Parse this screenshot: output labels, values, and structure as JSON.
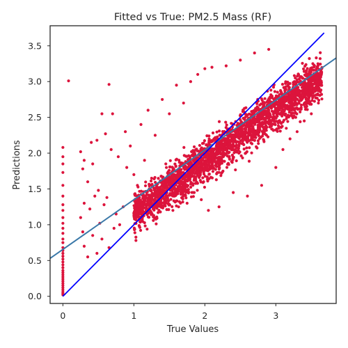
{
  "chart_data": {
    "type": "scatter",
    "title": "Fitted vs True: PM2.5 Mass (RF)",
    "xlabel": "True Values",
    "ylabel": "Predictions",
    "xlim": [
      -0.18,
      3.85
    ],
    "ylim": [
      -0.1,
      3.78
    ],
    "x_ticks": [
      0,
      1,
      2,
      3
    ],
    "y_ticks": [
      0.0,
      0.5,
      1.0,
      1.5,
      2.0,
      2.5,
      3.0,
      3.5
    ],
    "x_tick_labels": [
      "0",
      "1",
      "2",
      "3"
    ],
    "y_tick_labels": [
      "0.0",
      "0.5",
      "1.0",
      "1.5",
      "2.0",
      "2.5",
      "3.0",
      "3.5"
    ],
    "grid": false,
    "colors": {
      "points": "#dc143c",
      "identity_line": "#0000ff",
      "fit_line": "#3a78a8",
      "axes": "#262626"
    },
    "identity_line": {
      "x": [
        0.0,
        3.68
      ],
      "y": [
        0.0,
        3.68
      ]
    },
    "fit_line": {
      "x": [
        -0.18,
        3.85
      ],
      "y": [
        0.53,
        3.33
      ]
    },
    "series": [
      {
        "points": [
          [
            0.0,
            0.02
          ],
          [
            0.0,
            0.04
          ],
          [
            0.0,
            0.06
          ],
          [
            0.0,
            0.09
          ],
          [
            0.0,
            0.12
          ],
          [
            0.0,
            0.15
          ],
          [
            0.0,
            0.18
          ],
          [
            0.0,
            0.21
          ],
          [
            0.0,
            0.24
          ],
          [
            0.0,
            0.27
          ],
          [
            0.0,
            0.3
          ],
          [
            0.0,
            0.33
          ],
          [
            0.0,
            0.36
          ],
          [
            0.0,
            0.4
          ],
          [
            0.0,
            0.44
          ],
          [
            0.0,
            0.48
          ],
          [
            0.0,
            0.52
          ],
          [
            0.0,
            0.56
          ],
          [
            0.0,
            0.6
          ],
          [
            0.0,
            0.64
          ],
          [
            0.0,
            0.68
          ],
          [
            0.0,
            0.75
          ],
          [
            0.0,
            0.8
          ],
          [
            0.0,
            0.88
          ],
          [
            0.0,
            0.95
          ],
          [
            0.0,
            1.02
          ],
          [
            0.0,
            1.1
          ],
          [
            0.0,
            1.2
          ],
          [
            0.0,
            1.28
          ],
          [
            0.0,
            1.4
          ],
          [
            0.0,
            1.55
          ],
          [
            0.0,
            1.73
          ],
          [
            0.0,
            1.85
          ],
          [
            0.0,
            1.95
          ],
          [
            0.0,
            2.08
          ],
          [
            0.08,
            3.01
          ],
          [
            0.65,
            2.96
          ],
          [
            0.55,
            2.55
          ],
          [
            0.7,
            2.55
          ],
          [
            0.6,
            2.27
          ],
          [
            0.48,
            2.18
          ],
          [
            0.4,
            2.15
          ],
          [
            0.25,
            2.02
          ],
          [
            0.3,
            1.9
          ],
          [
            0.42,
            1.85
          ],
          [
            0.28,
            1.78
          ],
          [
            0.35,
            1.6
          ],
          [
            0.5,
            1.48
          ],
          [
            0.45,
            1.4
          ],
          [
            0.62,
            1.38
          ],
          [
            0.3,
            1.3
          ],
          [
            0.58,
            1.28
          ],
          [
            0.38,
            1.22
          ],
          [
            0.25,
            1.1
          ],
          [
            0.52,
            1.02
          ],
          [
            0.28,
            0.9
          ],
          [
            0.42,
            0.85
          ],
          [
            0.3,
            0.7
          ],
          [
            0.65,
            0.68
          ],
          [
            0.35,
            0.55
          ],
          [
            0.48,
            0.6
          ],
          [
            0.55,
            0.8
          ],
          [
            0.72,
            0.95
          ],
          [
            0.8,
            1.0
          ],
          [
            0.75,
            1.15
          ],
          [
            0.85,
            1.25
          ],
          [
            0.68,
            2.05
          ],
          [
            0.78,
            1.95
          ],
          [
            0.88,
            2.3
          ],
          [
            0.9,
            1.8
          ],
          [
            0.95,
            2.1
          ],
          [
            1.0,
            1.7
          ],
          [
            1.05,
            1.55
          ],
          [
            1.1,
            2.4
          ],
          [
            1.15,
            1.9
          ],
          [
            1.2,
            2.6
          ],
          [
            1.25,
            1.65
          ],
          [
            1.3,
            2.25
          ],
          [
            1.35,
            1.45
          ],
          [
            1.4,
            2.75
          ],
          [
            1.45,
            1.85
          ],
          [
            1.5,
            2.55
          ],
          [
            1.55,
            1.2
          ],
          [
            1.6,
            2.95
          ],
          [
            1.65,
            1.75
          ],
          [
            1.7,
            2.7
          ],
          [
            1.75,
            1.3
          ],
          [
            1.8,
            3.0
          ],
          [
            1.85,
            1.45
          ],
          [
            1.9,
            3.1
          ],
          [
            1.95,
            1.35
          ],
          [
            2.0,
            3.18
          ],
          [
            2.05,
            1.2
          ],
          [
            2.1,
            3.2
          ],
          [
            2.2,
            1.25
          ],
          [
            2.3,
            3.22
          ],
          [
            2.4,
            1.45
          ],
          [
            2.5,
            3.3
          ],
          [
            2.6,
            1.4
          ],
          [
            2.7,
            3.4
          ],
          [
            2.8,
            1.55
          ],
          [
            2.9,
            3.45
          ],
          [
            3.0,
            1.8
          ],
          [
            3.1,
            2.05
          ],
          [
            3.2,
            2.2
          ],
          [
            3.3,
            2.3
          ],
          [
            3.4,
            2.45
          ],
          [
            3.5,
            2.55
          ],
          [
            3.6,
            2.7
          ]
        ]
      }
    ]
  }
}
